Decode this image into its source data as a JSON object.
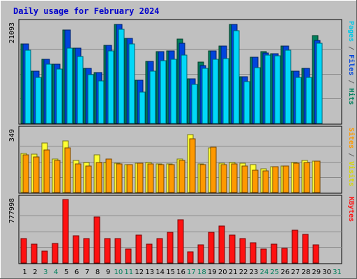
{
  "colors": {
    "frame": "#C0C0C0",
    "plot_bg": "#C0C0C0",
    "grid": "#8A8A8A",
    "title": "#0000CC",
    "hits": "#00805C",
    "hits_dark": "#2E6E55",
    "files": "#0044DD",
    "files_dark": "#0A2AA0",
    "pages": "#00D8F8",
    "pages_dark": "#0088A0",
    "visits": "#FFFF33",
    "visits_dark": "#A8A800",
    "sites": "#FF9900",
    "sites_dark": "#A05A00",
    "kbytes": "#FF1111",
    "kbytes_dark": "#8A0000",
    "day_weekday": "#000000",
    "day_weekend": "#00805C"
  },
  "chart_data": {
    "type": "bar",
    "title": "Daily usage for February 2024",
    "days": [
      1,
      2,
      3,
      4,
      5,
      6,
      7,
      8,
      9,
      10,
      11,
      12,
      13,
      14,
      15,
      16,
      17,
      18,
      19,
      20,
      21,
      22,
      23,
      24,
      25,
      26,
      27,
      28,
      29,
      30,
      31
    ],
    "weekend_days": [
      3,
      4,
      10,
      11,
      17,
      18,
      24,
      25,
      31
    ],
    "panels": [
      {
        "name": "hits-files-pages",
        "max_label": "21093",
        "ymax": 21093,
        "right_labels": [
          {
            "text": "Pages",
            "color": "#00C8E8"
          },
          {
            "text": " / ",
            "color": "#606060"
          },
          {
            "text": "Files",
            "color": "#0044DD"
          },
          {
            "text": " / ",
            "color": "#606060"
          },
          {
            "text": "Hits",
            "color": "#00805C"
          }
        ],
        "series": [
          {
            "name": "Hits",
            "color_key": "hits",
            "values": [
              16800,
              11000,
              13500,
              12500,
              19800,
              16000,
              11700,
              10800,
              16500,
              21000,
              18000,
              9100,
              13200,
              15200,
              15300,
              17800,
              9500,
              13000,
              15300,
              16300,
              21000,
              9900,
              14000,
              15200,
              14700,
              16400,
              11000,
              11600,
              18600,
              null,
              null
            ]
          },
          {
            "name": "Files",
            "color_key": "files",
            "values": [
              16800,
              11000,
              13500,
              12500,
              19800,
              16000,
              11700,
              10800,
              16500,
              21000,
              18000,
              9100,
              13200,
              15200,
              15300,
              17000,
              9500,
              12200,
              15300,
              16300,
              21000,
              9900,
              14000,
              14900,
              14700,
              16400,
              11000,
              11600,
              17600,
              null,
              null
            ]
          },
          {
            "name": "Pages",
            "color_key": "pages",
            "values": [
              15500,
              9800,
              12500,
              11500,
              16000,
              14200,
              10300,
              9000,
              15300,
              19900,
              16800,
              6600,
              11000,
              13300,
              13600,
              14500,
              8300,
              11600,
              13600,
              13700,
              19600,
              8800,
              11800,
              14400,
              14300,
              15500,
              9800,
              9800,
              16900,
              null,
              null
            ]
          }
        ]
      },
      {
        "name": "visits-sites",
        "max_label": "349",
        "ymax": 349,
        "right_labels": [
          {
            "text": "Sites",
            "color": "#FF9900"
          },
          {
            "text": " / ",
            "color": "#606060"
          },
          {
            "text": "Visits",
            "color": "#D8D800"
          }
        ],
        "series": [
          {
            "name": "Visits",
            "color_key": "visits",
            "values": [
              220,
              215,
              280,
              190,
              290,
              180,
              170,
              210,
              170,
              165,
              155,
              165,
              170,
              160,
              160,
              190,
              325,
              160,
              250,
              165,
              170,
              165,
              155,
              135,
              145,
              150,
              170,
              180,
              175,
              null,
              null
            ]
          },
          {
            "name": "Sites",
            "color_key": "sites",
            "values": [
              210,
              200,
              240,
              180,
              250,
              160,
              150,
              170,
              190,
              160,
              155,
              165,
              160,
              155,
              155,
              180,
              300,
              155,
              255,
              155,
              160,
              150,
              125,
              120,
              145,
              150,
              165,
              170,
              175,
              null,
              null
            ]
          }
        ]
      },
      {
        "name": "kbytes",
        "max_label": "777998",
        "ymax": 777998,
        "right_labels": [
          {
            "text": "KBytes",
            "color": "#FF1111"
          }
        ],
        "series": [
          {
            "name": "KBytes",
            "color_key": "kbytes",
            "values": [
              300000,
              230000,
              145000,
              240000,
              778000,
              330000,
              300000,
              560000,
              300000,
              300000,
              175000,
              340000,
              235000,
              300000,
              380000,
              530000,
              140000,
              220000,
              380000,
              450000,
              340000,
              300000,
              250000,
              170000,
              230000,
              180000,
              400000,
              350000,
              220000,
              null,
              null
            ]
          }
        ]
      }
    ]
  }
}
